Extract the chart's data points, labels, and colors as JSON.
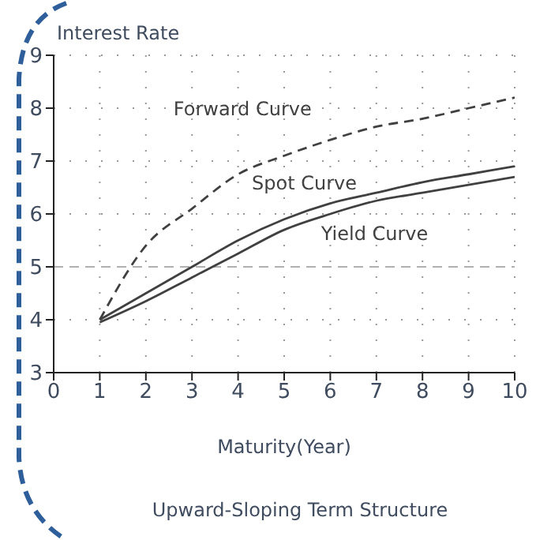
{
  "chart_data": {
    "type": "line",
    "ylabel": "Interest Rate",
    "xlabel": "Maturity(Year)",
    "annotations": [
      "Upward-Sloping Term Structure"
    ],
    "x": [
      1,
      2,
      3,
      4,
      5,
      6,
      7,
      8,
      9,
      10
    ],
    "series": [
      {
        "name": "Forward Curve",
        "color": "#404040",
        "line_style": "dashed",
        "values": [
          4.0,
          5.4,
          6.1,
          6.75,
          7.1,
          7.4,
          7.65,
          7.8,
          8.0,
          8.2
        ]
      },
      {
        "name": "Spot Curve",
        "color": "#404040",
        "line_style": "solid",
        "values": [
          4.0,
          4.5,
          5.0,
          5.5,
          5.9,
          6.2,
          6.4,
          6.6,
          6.75,
          6.9
        ]
      },
      {
        "name": "Yield Curve",
        "color": "#404040",
        "line_style": "solid",
        "values": [
          3.95,
          4.35,
          4.8,
          5.25,
          5.7,
          6.0,
          6.25,
          6.4,
          6.55,
          6.7
        ]
      }
    ],
    "xlim": [
      0,
      10
    ],
    "xticks": [
      0,
      1,
      2,
      3,
      4,
      5,
      6,
      7,
      8,
      9,
      10
    ],
    "ylim": [
      3,
      9
    ],
    "yticks": [
      3,
      4,
      5,
      6,
      7,
      8,
      9
    ],
    "grid": true,
    "marker": "none",
    "ref_lines": [
      {
        "axis": "y",
        "value": 5,
        "color": "#b0b0b0",
        "line_style": "dashed"
      }
    ]
  }
}
